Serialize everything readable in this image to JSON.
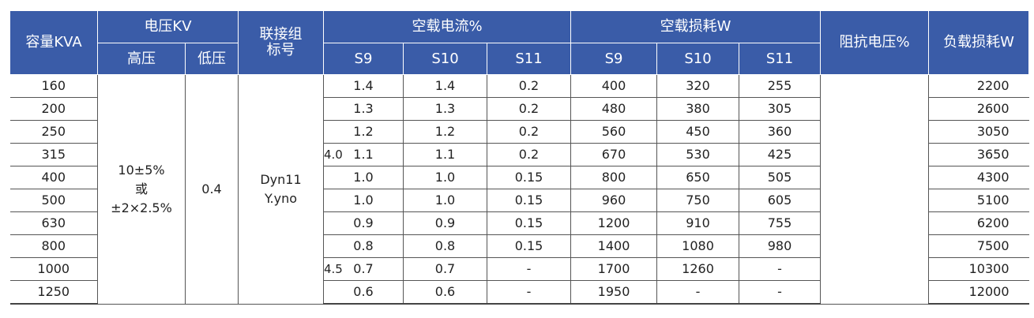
{
  "header": {
    "capacity": "容量KVA",
    "voltage": "电压KV",
    "high": "高压",
    "low": "低压",
    "conn_line1": "联接组",
    "conn_line2": "标号",
    "no_load_current": "空载电流%",
    "no_load_loss": "空载损耗W",
    "impedance": "阻抗电压%",
    "load_loss": "负载损耗W",
    "s9": "S9",
    "s10": "S10",
    "s11": "S11"
  },
  "merged": {
    "high_line1": "10±5%",
    "high_line2": "或",
    "high_line3": "±2×2.5%",
    "low": "0.4",
    "conn_line1": "Dyn11",
    "conn_line2": "Y.yno"
  },
  "impedance_values": [
    "4.0",
    "4.5"
  ],
  "rows": [
    {
      "cap": "160",
      "c9": "1.4",
      "c10": "1.4",
      "c11": "0.2",
      "l9": "400",
      "l10": "320",
      "l11": "255",
      "load": "2200"
    },
    {
      "cap": "200",
      "c9": "1.3",
      "c10": "1.3",
      "c11": "0.2",
      "l9": "480",
      "l10": "380",
      "l11": "305",
      "load": "2600"
    },
    {
      "cap": "250",
      "c9": "1.2",
      "c10": "1.2",
      "c11": "0.2",
      "l9": "560",
      "l10": "450",
      "l11": "360",
      "load": "3050"
    },
    {
      "cap": "315",
      "c9": "1.1",
      "c10": "1.1",
      "c11": "0.2",
      "l9": "670",
      "l10": "530",
      "l11": "425",
      "load": "3650"
    },
    {
      "cap": "400",
      "c9": "1.0",
      "c10": "1.0",
      "c11": "0.15",
      "l9": "800",
      "l10": "650",
      "l11": "505",
      "load": "4300"
    },
    {
      "cap": "500",
      "c9": "1.0",
      "c10": "1.0",
      "c11": "0.15",
      "l9": "960",
      "l10": "750",
      "l11": "605",
      "load": "5100"
    },
    {
      "cap": "630",
      "c9": "0.9",
      "c10": "0.9",
      "c11": "0.15",
      "l9": "1200",
      "l10": "910",
      "l11": "755",
      "load": "6200"
    },
    {
      "cap": "800",
      "c9": "0.8",
      "c10": "0.8",
      "c11": "0.15",
      "l9": "1400",
      "l10": "1080",
      "l11": "980",
      "load": "7500"
    },
    {
      "cap": "1000",
      "c9": "0.7",
      "c10": "0.7",
      "c11": "-",
      "l9": "1700",
      "l10": "1260",
      "l11": "-",
      "load": "10300"
    },
    {
      "cap": "1250",
      "c9": "0.6",
      "c10": "0.6",
      "c11": "-",
      "l9": "1950",
      "l10": "-",
      "l11": "-",
      "load": "12000"
    }
  ]
}
